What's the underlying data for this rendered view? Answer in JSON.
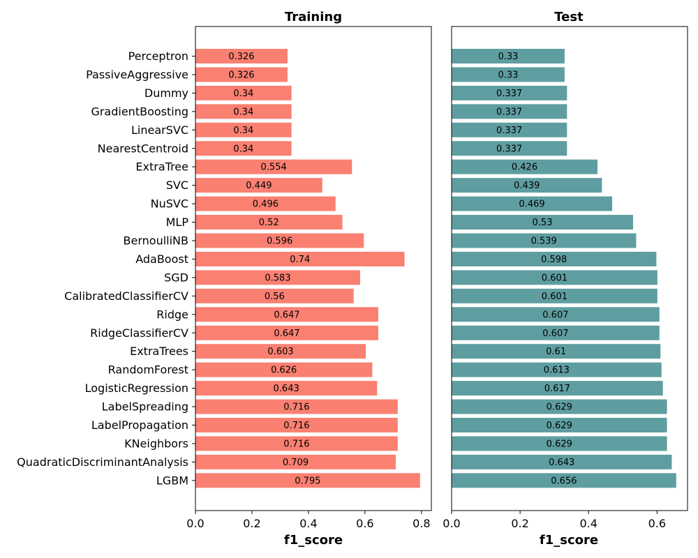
{
  "chart_data": {
    "type": "bar",
    "orientation": "horizontal",
    "categories": [
      "Perceptron",
      "PassiveAggressive",
      "Dummy",
      "GradientBoosting",
      "LinearSVC",
      "NearestCentroid",
      "ExtraTree",
      "SVC",
      "NuSVC",
      "MLP",
      "BernoulliNB",
      "AdaBoost",
      "SGD",
      "CalibratedClassifierCV",
      "Ridge",
      "RidgeClassifierCV",
      "ExtraTrees",
      "RandomForest",
      "LogisticRegression",
      "LabelSpreading",
      "LabelPropagation",
      "KNeighbors",
      "QuadraticDiscriminantAnalysis",
      "LGBM"
    ],
    "panels": [
      {
        "title": "Training",
        "xlabel": "f1_score",
        "xlim": [
          0,
          0.835
        ],
        "xticks": [
          0.0,
          0.2,
          0.4,
          0.6,
          0.8
        ],
        "xtick_labels": [
          "0.0",
          "0.2",
          "0.4",
          "0.6",
          "0.8"
        ],
        "color": "#fa8072",
        "values": [
          0.326,
          0.326,
          0.34,
          0.34,
          0.34,
          0.34,
          0.554,
          0.449,
          0.496,
          0.52,
          0.596,
          0.74,
          0.583,
          0.56,
          0.647,
          0.647,
          0.603,
          0.626,
          0.643,
          0.716,
          0.716,
          0.716,
          0.709,
          0.795
        ],
        "value_labels": [
          "0.326",
          "0.326",
          "0.34",
          "0.34",
          "0.34",
          "0.34",
          "0.554",
          "0.449",
          "0.496",
          "0.52",
          "0.596",
          "0.74",
          "0.583",
          "0.56",
          "0.647",
          "0.647",
          "0.603",
          "0.626",
          "0.643",
          "0.716",
          "0.716",
          "0.716",
          "0.709",
          "0.795"
        ]
      },
      {
        "title": "Test",
        "xlabel": "f1_score",
        "xlim": [
          0,
          0.689
        ],
        "xticks": [
          0.0,
          0.2,
          0.4,
          0.6
        ],
        "xtick_labels": [
          "0.0",
          "0.2",
          "0.4",
          "0.6"
        ],
        "color": "#5f9ea0",
        "values": [
          0.33,
          0.33,
          0.337,
          0.337,
          0.337,
          0.337,
          0.426,
          0.439,
          0.469,
          0.53,
          0.539,
          0.598,
          0.601,
          0.601,
          0.607,
          0.607,
          0.61,
          0.613,
          0.617,
          0.629,
          0.629,
          0.629,
          0.643,
          0.656
        ],
        "value_labels": [
          "0.33",
          "0.33",
          "0.337",
          "0.337",
          "0.337",
          "0.337",
          "0.426",
          "0.439",
          "0.469",
          "0.53",
          "0.539",
          "0.598",
          "0.601",
          "0.601",
          "0.607",
          "0.607",
          "0.61",
          "0.613",
          "0.617",
          "0.629",
          "0.629",
          "0.629",
          "0.643",
          "0.656"
        ]
      }
    ],
    "grid": false,
    "legend": "none"
  }
}
